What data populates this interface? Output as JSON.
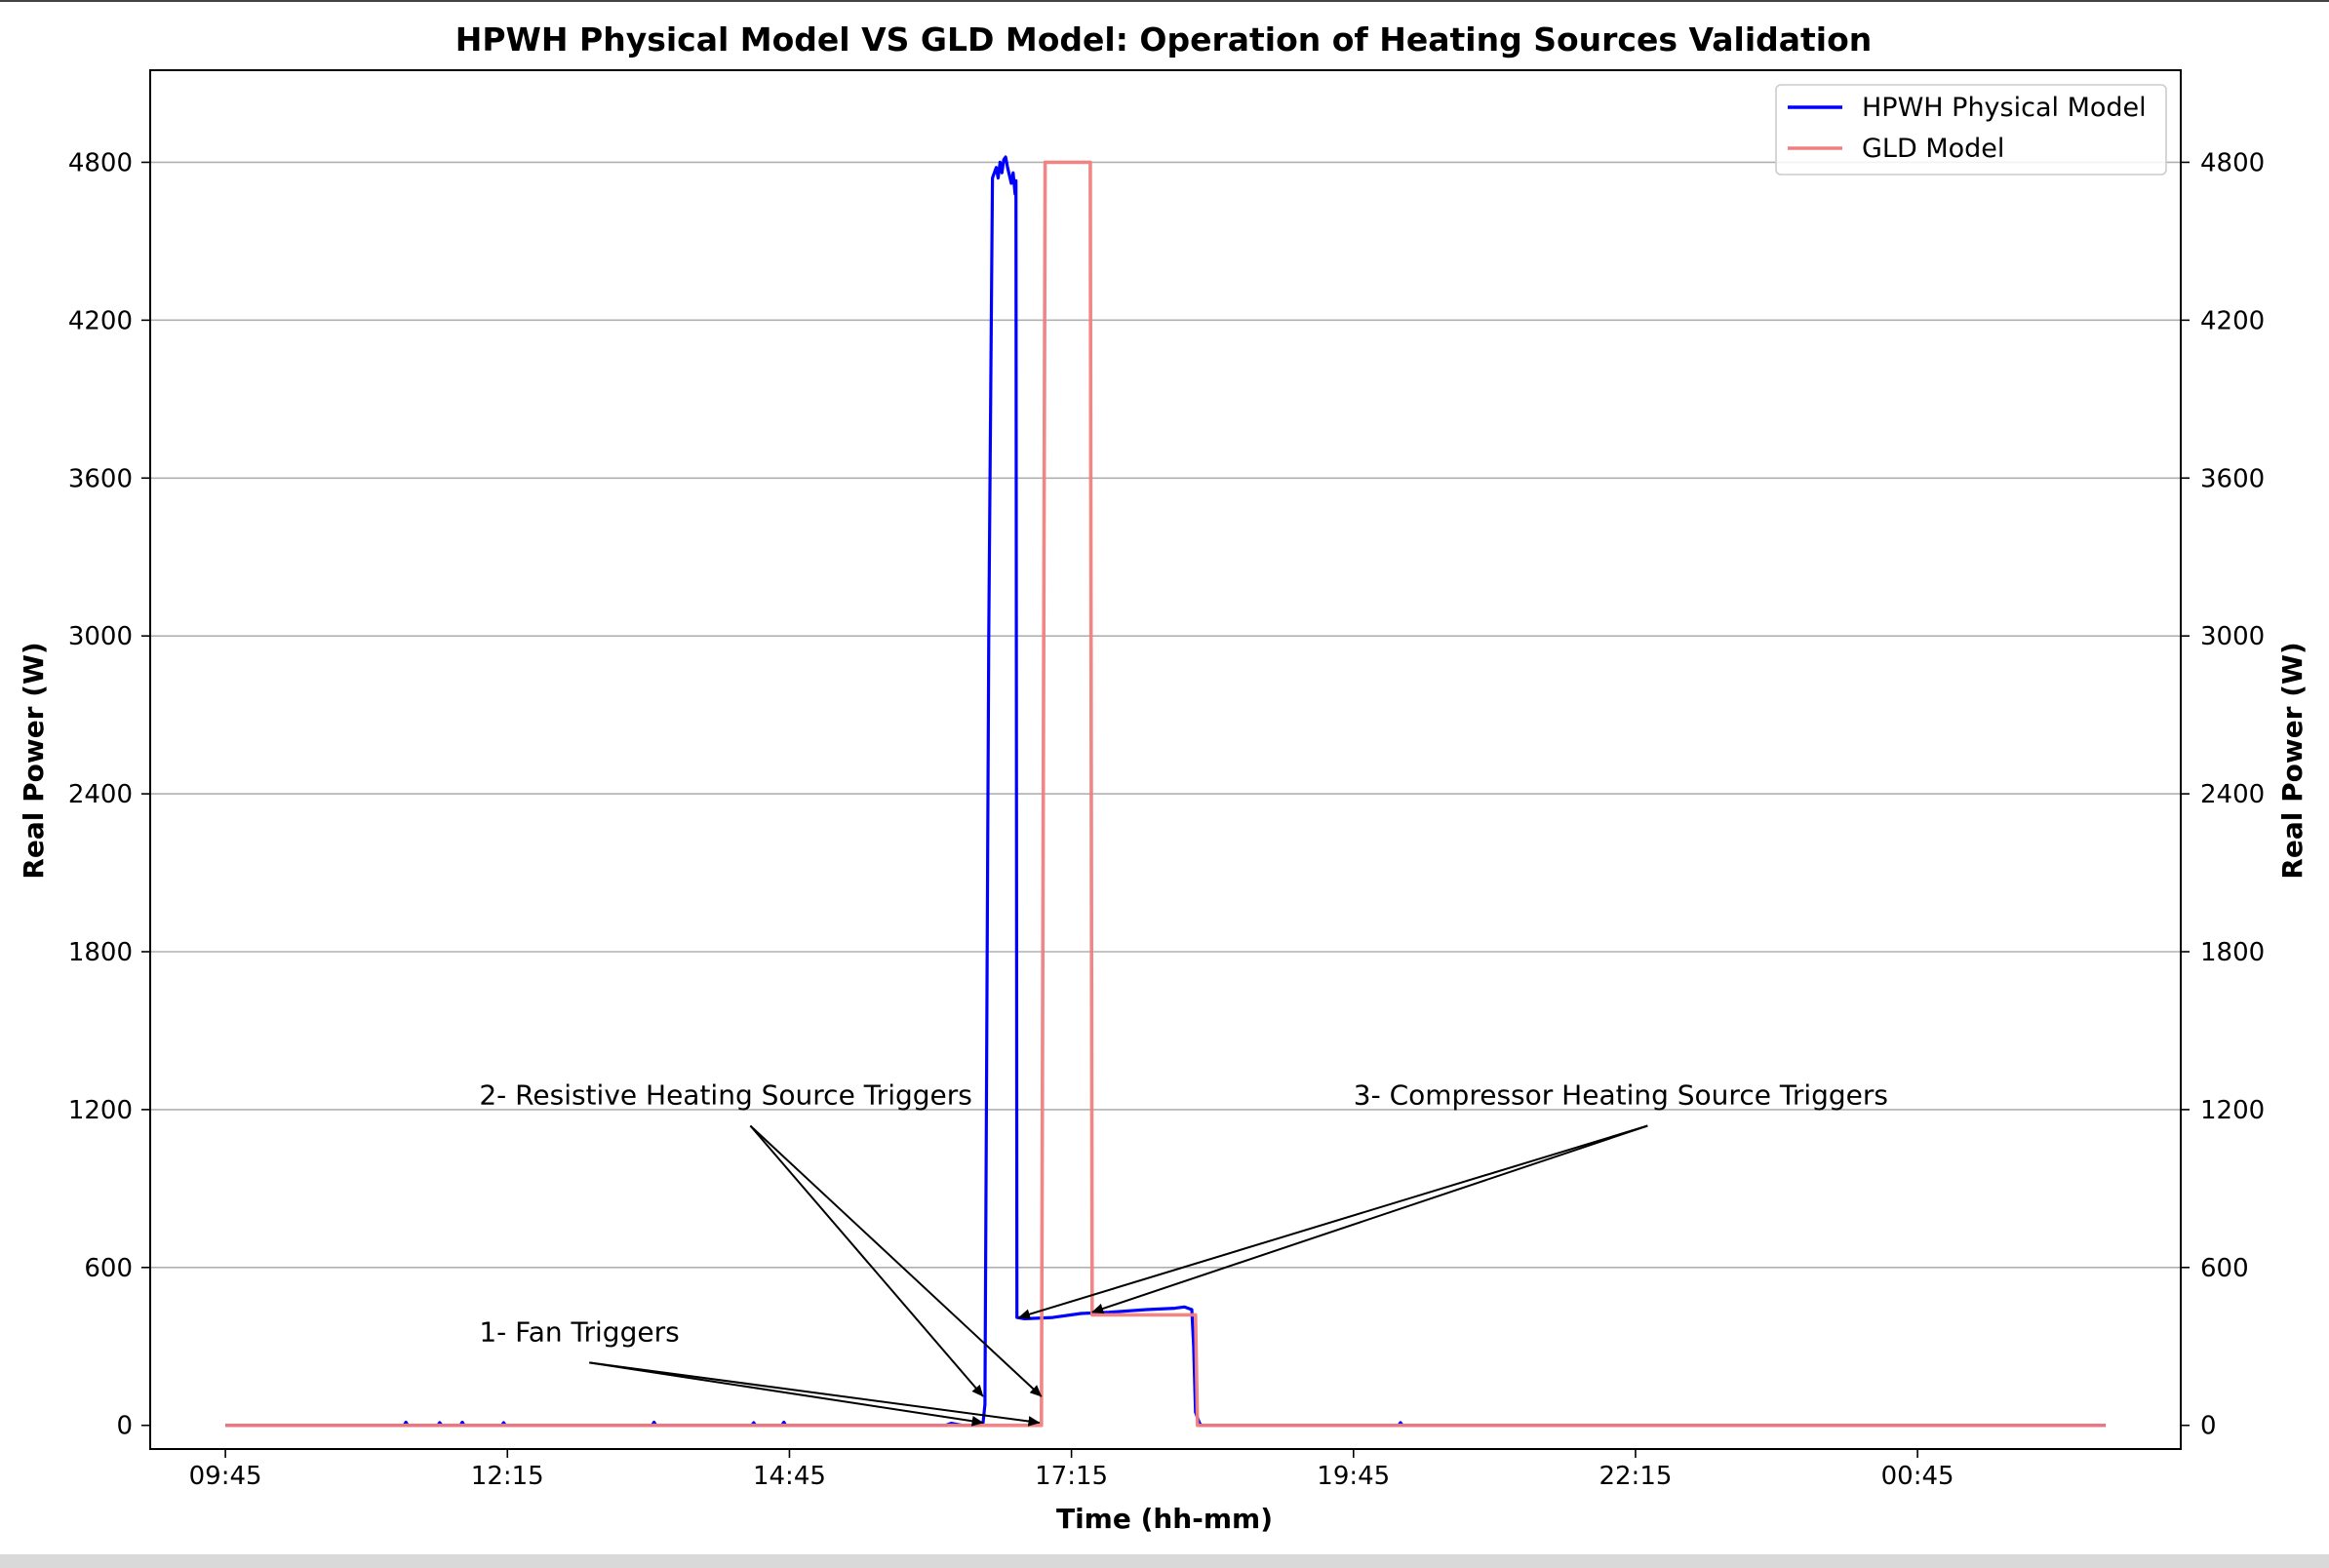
{
  "chart_data": {
    "type": "line",
    "title": "HPWH Physical Model VS GLD Model: Operation of Heating Sources Validation",
    "xlabel": "Time (hh-mm)",
    "ylabel_left": "Real Power (W)",
    "ylabel_right": "Real Power (W)",
    "x_unit": "minutes since 09:45",
    "xlim": [
      -40,
      1040
    ],
    "ylim": [
      -90,
      5150
    ],
    "x_ticks": [
      {
        "value": 0,
        "label": "09:45"
      },
      {
        "value": 150,
        "label": "12:15"
      },
      {
        "value": 300,
        "label": "14:45"
      },
      {
        "value": 450,
        "label": "17:15"
      },
      {
        "value": 600,
        "label": "19:45"
      },
      {
        "value": 750,
        "label": "22:15"
      },
      {
        "value": 900,
        "label": "00:45"
      }
    ],
    "y_ticks": [
      0,
      600,
      1200,
      1800,
      2400,
      3000,
      3600,
      4200,
      4800
    ],
    "grid": "horizontal",
    "legend_position": "top-right",
    "series": [
      {
        "name": "HPWH Physical Model",
        "color": "#0000ff",
        "points": [
          [
            0,
            0
          ],
          [
            95,
            0
          ],
          [
            96,
            12
          ],
          [
            97,
            0
          ],
          [
            113,
            0
          ],
          [
            114,
            10
          ],
          [
            115,
            0
          ],
          [
            125,
            0
          ],
          [
            126,
            12
          ],
          [
            127,
            0
          ],
          [
            147,
            0
          ],
          [
            148,
            10
          ],
          [
            149,
            0
          ],
          [
            227,
            0
          ],
          [
            228,
            12
          ],
          [
            229,
            0
          ],
          [
            280,
            0
          ],
          [
            281,
            10
          ],
          [
            282,
            0
          ],
          [
            296,
            0
          ],
          [
            297,
            12
          ],
          [
            298,
            0
          ],
          [
            383,
            0
          ],
          [
            386,
            8
          ],
          [
            392,
            0
          ],
          [
            400,
            0
          ],
          [
            403,
            10
          ],
          [
            404,
            80
          ],
          [
            406,
            3000
          ],
          [
            408,
            4740
          ],
          [
            410,
            4780
          ],
          [
            411,
            4740
          ],
          [
            412,
            4800
          ],
          [
            413,
            4760
          ],
          [
            414,
            4810
          ],
          [
            415,
            4820
          ],
          [
            416,
            4780
          ],
          [
            417,
            4750
          ],
          [
            418,
            4720
          ],
          [
            419,
            4760
          ],
          [
            420,
            4680
          ],
          [
            420.5,
            4730
          ],
          [
            421,
            410
          ],
          [
            425,
            405
          ],
          [
            440,
            410
          ],
          [
            455,
            425
          ],
          [
            470,
            430
          ],
          [
            490,
            440
          ],
          [
            505,
            445
          ],
          [
            510,
            450
          ],
          [
            514,
            440
          ],
          [
            515,
            300
          ],
          [
            516,
            50
          ],
          [
            518,
            10
          ],
          [
            519,
            0
          ],
          [
            624,
            0
          ],
          [
            625,
            10
          ],
          [
            626,
            0
          ],
          [
            1000,
            0
          ]
        ]
      },
      {
        "name": "GLD Model",
        "color": "#f08080",
        "points": [
          [
            0,
            0
          ],
          [
            434,
            0
          ],
          [
            436,
            4800
          ],
          [
            460,
            4800
          ],
          [
            461,
            420
          ],
          [
            515,
            420
          ],
          [
            516,
            420
          ],
          [
            517,
            0
          ],
          [
            1000,
            0
          ]
        ]
      }
    ],
    "annotations": [
      {
        "text": "1- Fan Triggers",
        "text_at": [
          135,
          320
        ],
        "targets": [
          [
            403,
            10
          ],
          [
            433,
            10
          ]
        ]
      },
      {
        "text": "2- Resistive Heating Source Triggers",
        "text_at": [
          135,
          1220
        ],
        "targets": [
          [
            403,
            110
          ],
          [
            434,
            110
          ]
        ]
      },
      {
        "text": "3- Compressor Heating Source Triggers",
        "text_at": [
          600,
          1220
        ],
        "targets": [
          [
            422,
            410
          ],
          [
            461,
            430
          ]
        ]
      }
    ]
  }
}
